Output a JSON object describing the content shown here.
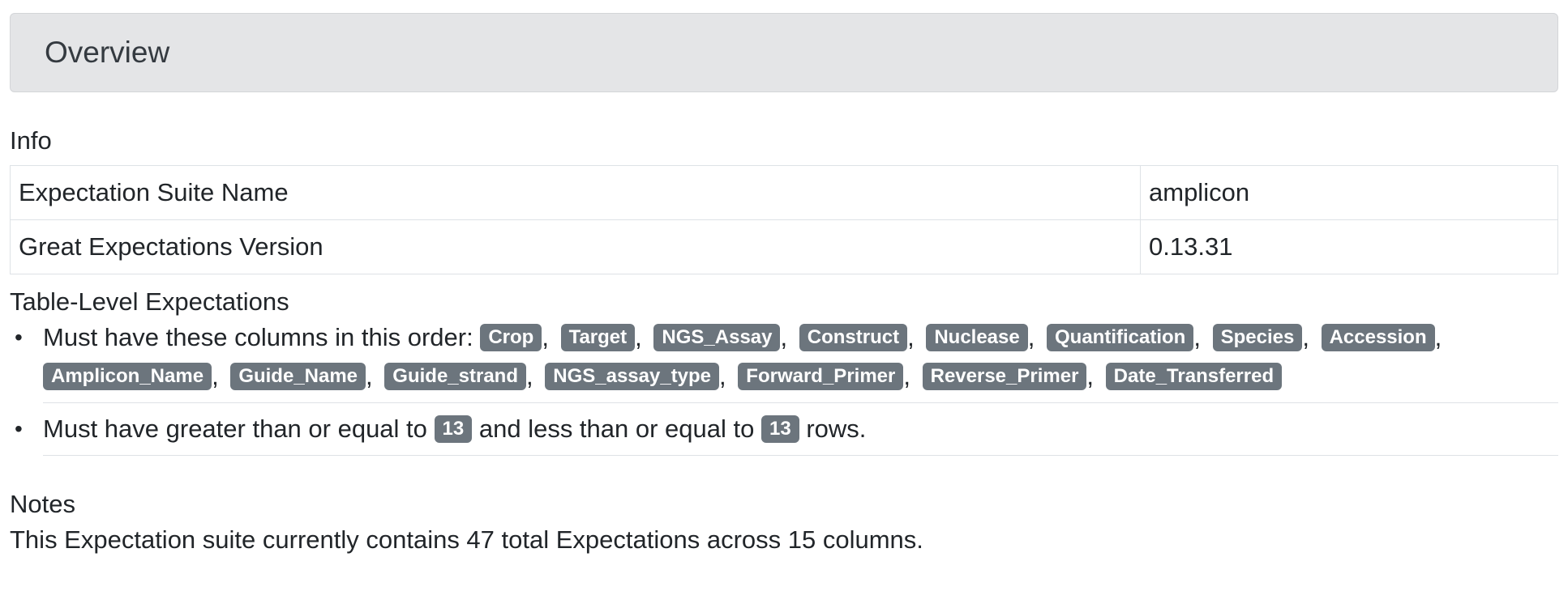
{
  "header": {
    "title": "Overview"
  },
  "info": {
    "title": "Info",
    "rows": [
      {
        "key": "Expectation Suite Name",
        "value": "amplicon"
      },
      {
        "key": "Great Expectations Version",
        "value": "0.13.31"
      }
    ]
  },
  "table_level": {
    "title": "Table-Level Expectations",
    "columns_expectation": {
      "prefix": "Must have these columns in this order:",
      "columns": [
        "Crop",
        "Target",
        "NGS_Assay",
        "Construct",
        "Nuclease",
        "Quantification",
        "Species",
        "Accession",
        "Amplicon_Name",
        "Guide_Name",
        "Guide_strand",
        "NGS_assay_type",
        "Forward_Primer",
        "Reverse_Primer",
        "Date_Transferred"
      ]
    },
    "row_count_expectation": {
      "text_1": "Must have greater than or equal to",
      "min": "13",
      "text_2": "and less than or equal to",
      "max": "13",
      "text_3": "rows."
    }
  },
  "notes": {
    "title": "Notes",
    "text": "This Expectation suite currently contains 47 total Expectations across 15 columns."
  }
}
